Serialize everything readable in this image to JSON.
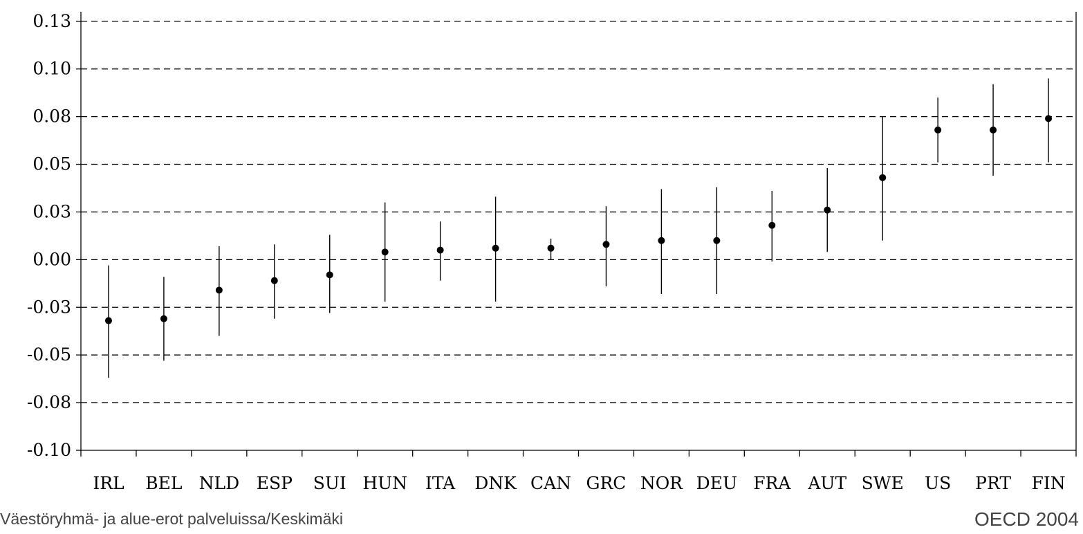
{
  "footer": {
    "left": "Väestöryhmä- ja alue-erot palveluissa/Keskimäki",
    "right": "OECD 2004"
  },
  "chart_data": {
    "type": "scatter",
    "title": "",
    "xlabel": "",
    "ylabel": "",
    "ylim": [
      -0.1,
      0.13
    ],
    "y_tick_labels": [
      "0.13",
      "0.10",
      "0.08",
      "0.05",
      "0.03",
      "0.00",
      "-0.03",
      "-0.05",
      "-0.08",
      "-0.10"
    ],
    "y_tick_values": [
      0.125,
      0.1,
      0.075,
      0.05,
      0.025,
      0.0,
      -0.025,
      -0.05,
      -0.075,
      -0.1
    ],
    "grid": "horizontal dashed",
    "categories": [
      "IRL",
      "BEL",
      "NLD",
      "ESP",
      "SUI",
      "HUN",
      "ITA",
      "DNK",
      "CAN",
      "GRC",
      "NOR",
      "DEU",
      "FRA",
      "AUT",
      "SWE",
      "US",
      "PRT",
      "FIN"
    ],
    "values": [
      -0.032,
      -0.031,
      -0.016,
      -0.011,
      -0.008,
      0.004,
      0.005,
      0.006,
      0.006,
      0.008,
      0.01,
      0.01,
      0.018,
      0.026,
      0.043,
      0.068,
      0.068,
      0.074
    ],
    "ci_low": [
      -0.062,
      -0.053,
      -0.04,
      -0.031,
      -0.028,
      -0.022,
      -0.011,
      -0.022,
      0.0,
      -0.014,
      -0.018,
      -0.018,
      -0.001,
      0.004,
      0.01,
      0.051,
      0.044,
      0.051
    ],
    "ci_high": [
      -0.003,
      -0.009,
      0.007,
      0.008,
      0.013,
      0.03,
      0.02,
      0.033,
      0.011,
      0.028,
      0.037,
      0.038,
      0.036,
      0.048,
      0.075,
      0.085,
      0.092,
      0.095
    ]
  }
}
